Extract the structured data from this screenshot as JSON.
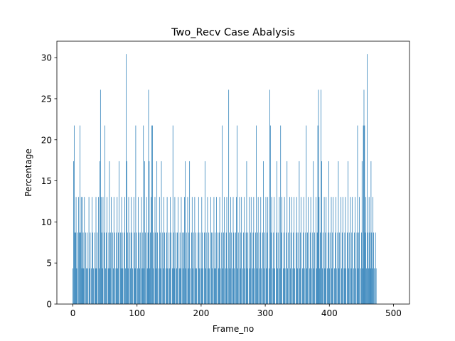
{
  "figure": {
    "background": "#ffffff"
  },
  "chart_data": {
    "type": "bar",
    "title": "Two_Recv Case Abalysis",
    "xlabel": "Frame_no",
    "ylabel": "Percentage",
    "xlim": [
      -25,
      525
    ],
    "ylim": [
      0,
      32
    ],
    "xticks": [
      0,
      100,
      200,
      300,
      400,
      500
    ],
    "yticks": [
      0,
      5,
      10,
      15,
      20,
      25,
      30
    ],
    "grid": false,
    "bar_color": "#1f77b4",
    "x_start": 0,
    "x_step": 1,
    "values": [
      4.35,
      17.39,
      21.74,
      8.7,
      8.7,
      13.04,
      4.35,
      8.7,
      0,
      13.04,
      8.7,
      21.74,
      8.7,
      13.04,
      4.35,
      13.04,
      8.7,
      4.35,
      13.04,
      0,
      8.7,
      4.35,
      8.7,
      4.35,
      0,
      13.04,
      4.35,
      8.7,
      0,
      4.35,
      13.04,
      8.7,
      4.35,
      0,
      8.7,
      4.35,
      13.04,
      4.35,
      8.7,
      0,
      13.04,
      4.35,
      17.39,
      26.09,
      13.04,
      8.7,
      4.35,
      13.04,
      0,
      8.7,
      21.74,
      4.35,
      8.7,
      13.04,
      0,
      4.35,
      8.7,
      17.39,
      4.35,
      8.7,
      13.04,
      0,
      8.7,
      4.35,
      13.04,
      8.7,
      0,
      4.35,
      8.7,
      13.04,
      4.35,
      8.7,
      17.39,
      0,
      8.7,
      4.35,
      13.04,
      8.7,
      4.35,
      0,
      8.7,
      13.04,
      4.35,
      30.43,
      17.39,
      8.7,
      4.35,
      13.04,
      0,
      8.7,
      4.35,
      13.04,
      8.7,
      4.35,
      0,
      13.04,
      8.7,
      4.35,
      21.74,
      8.7,
      0,
      4.35,
      13.04,
      8.7,
      4.35,
      8.7,
      0,
      13.04,
      4.35,
      8.7,
      21.74,
      4.35,
      17.39,
      8.7,
      0,
      13.04,
      4.35,
      8.7,
      26.09,
      17.39,
      4.35,
      8.7,
      13.04,
      21.74,
      21.74,
      4.35,
      8.7,
      0,
      13.04,
      8.7,
      4.35,
      17.39,
      8.7,
      0,
      4.35,
      13.04,
      8.7,
      4.35,
      17.39,
      0,
      8.7,
      4.35,
      13.04,
      8.7,
      0,
      4.35,
      8.7,
      13.04,
      4.35,
      0,
      8.7,
      4.35,
      13.04,
      8.7,
      0,
      4.35,
      21.74,
      8.7,
      4.35,
      13.04,
      0,
      8.7,
      4.35,
      8.7,
      13.04,
      0,
      4.35,
      8.7,
      4.35,
      13.04,
      0,
      8.7,
      4.35,
      8.7,
      13.04,
      17.39,
      4.35,
      8.7,
      0,
      13.04,
      4.35,
      8.7,
      17.39,
      4.35,
      0,
      8.7,
      13.04,
      4.35,
      8.7,
      0,
      13.04,
      4.35,
      8.7,
      4.35,
      0,
      8.7,
      13.04,
      4.35,
      8.7,
      0,
      4.35,
      13.04,
      8.7,
      4.35,
      0,
      8.7,
      17.39,
      4.35,
      8.7,
      0,
      13.04,
      4.35,
      8.7,
      4.35,
      0,
      13.04,
      8.7,
      4.35,
      8.7,
      0,
      13.04,
      4.35,
      8.7,
      4.35,
      13.04,
      0,
      8.7,
      4.35,
      8.7,
      13.04,
      4.35,
      0,
      8.7,
      21.74,
      4.35,
      8.7,
      13.04,
      0,
      4.35,
      8.7,
      13.04,
      4.35,
      0,
      26.09,
      8.7,
      4.35,
      13.04,
      8.7,
      0,
      4.35,
      13.04,
      8.7,
      4.35,
      0,
      8.7,
      13.04,
      21.74,
      4.35,
      8.7,
      0,
      13.04,
      4.35,
      8.7,
      13.04,
      0,
      4.35,
      8.7,
      13.04,
      4.35,
      0,
      8.7,
      17.39,
      4.35,
      8.7,
      0,
      13.04,
      4.35,
      8.7,
      13.04,
      0,
      4.35,
      8.7,
      13.04,
      4.35,
      0,
      8.7,
      21.74,
      4.35,
      8.7,
      13.04,
      0,
      4.35,
      8.7,
      13.04,
      4.35,
      0,
      8.7,
      17.39,
      4.35,
      8.7,
      0,
      13.04,
      4.35,
      8.7,
      13.04,
      0,
      4.35,
      26.09,
      21.74,
      8.7,
      13.04,
      0,
      4.35,
      8.7,
      13.04,
      4.35,
      0,
      8.7,
      17.39,
      4.35,
      8.7,
      0,
      13.04,
      4.35,
      21.74,
      8.7,
      13.04,
      0,
      4.35,
      8.7,
      13.04,
      4.35,
      0,
      8.7,
      17.39,
      4.35,
      8.7,
      0,
      13.04,
      4.35,
      8.7,
      13.04,
      0,
      4.35,
      8.7,
      13.04,
      4.35,
      0,
      8.7,
      13.04,
      4.35,
      8.7,
      0,
      17.39,
      4.35,
      8.7,
      13.04,
      0,
      4.35,
      8.7,
      13.04,
      4.35,
      0,
      8.7,
      21.74,
      4.35,
      8.7,
      13.04,
      0,
      4.35,
      8.7,
      13.04,
      4.35,
      0,
      8.7,
      17.39,
      4.35,
      8.7,
      0,
      13.04,
      4.35,
      8.7,
      21.74,
      26.09,
      13.04,
      4.35,
      8.7,
      26.09,
      17.39,
      4.35,
      8.7,
      0,
      13.04,
      4.35,
      8.7,
      13.04,
      0,
      4.35,
      8.7,
      17.39,
      4.35,
      8.7,
      0,
      13.04,
      4.35,
      8.7,
      13.04,
      0,
      4.35,
      8.7,
      13.04,
      4.35,
      0,
      8.7,
      17.39,
      4.35,
      8.7,
      0,
      13.04,
      4.35,
      8.7,
      13.04,
      0,
      4.35,
      8.7,
      13.04,
      4.35,
      0,
      8.7,
      17.39,
      4.35,
      8.7,
      0,
      13.04,
      4.35,
      8.7,
      13.04,
      0,
      4.35,
      8.7,
      13.04,
      4.35,
      0,
      8.7,
      21.74,
      4.35,
      8.7,
      13.04,
      0,
      4.35,
      8.7,
      17.39,
      4.35,
      21.74,
      26.09,
      21.74,
      8.7,
      13.04,
      4.35,
      30.43,
      8.7,
      4.35,
      13.04,
      8.7,
      4.35,
      17.39,
      8.7,
      4.35,
      13.04,
      8.7,
      4.35,
      0,
      8.7,
      4.35
    ]
  }
}
